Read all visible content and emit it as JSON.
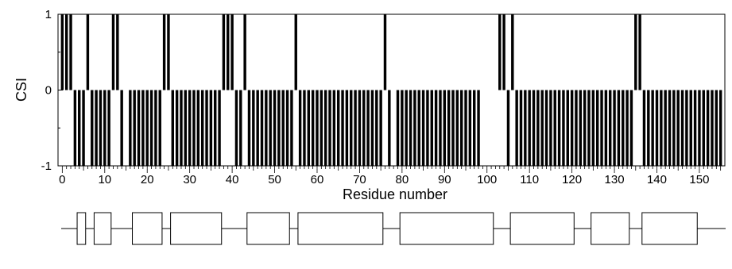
{
  "chart_data": {
    "type": "bar",
    "title": "",
    "ylabel": "CSI",
    "xlabel": "Residue number",
    "xlim": [
      -1,
      156
    ],
    "ylim": [
      -1,
      1
    ],
    "x_ticks": [
      "0",
      "10",
      "20",
      "30",
      "40",
      "50",
      "60",
      "70",
      "80",
      "90",
      "100",
      "110",
      "120",
      "130",
      "140",
      "150"
    ],
    "y_ticks": [
      "-1",
      "0",
      "1"
    ],
    "bar_color": "#000000",
    "csi_values": [
      1,
      1,
      1,
      -1,
      -1,
      -1,
      1,
      -1,
      -1,
      -1,
      -1,
      -1,
      1,
      1,
      -1,
      0,
      -1,
      -1,
      -1,
      -1,
      -1,
      -1,
      -1,
      -1,
      1,
      1,
      -1,
      -1,
      -1,
      -1,
      -1,
      -1,
      -1,
      -1,
      -1,
      -1,
      -1,
      -1,
      1,
      1,
      1,
      -1,
      -1,
      1,
      -1,
      -1,
      -1,
      -1,
      -1,
      -1,
      -1,
      -1,
      -1,
      -1,
      -1,
      1,
      -1,
      -1,
      -1,
      -1,
      -1,
      -1,
      -1,
      -1,
      -1,
      -1,
      -1,
      -1,
      -1,
      -1,
      -1,
      -1,
      -1,
      -1,
      -1,
      -1,
      1,
      -1,
      0,
      -1,
      -1,
      -1,
      -1,
      -1,
      -1,
      -1,
      -1,
      -1,
      -1,
      -1,
      -1,
      -1,
      -1,
      -1,
      -1,
      -1,
      -1,
      -1,
      -1,
      0,
      0,
      0,
      0,
      1,
      1,
      -1,
      1,
      -1,
      -1,
      -1,
      -1,
      -1,
      -1,
      -1,
      -1,
      -1,
      -1,
      -1,
      -1,
      -1,
      -1,
      -1,
      -1,
      -1,
      -1,
      -1,
      -1,
      -1,
      -1,
      -1,
      -1,
      -1,
      -1,
      -1,
      -1,
      1,
      1,
      -1,
      -1,
      -1,
      -1,
      -1,
      -1,
      -1,
      -1,
      -1,
      -1,
      -1,
      -1,
      -1,
      -1,
      -1,
      -1,
      -1,
      -1,
      -1
    ],
    "secondary_structure": [
      {
        "start": 3.5,
        "end": 5.5
      },
      {
        "start": 7.5,
        "end": 11.5
      },
      {
        "start": 16.5,
        "end": 23.5
      },
      {
        "start": 25.5,
        "end": 37.5
      },
      {
        "start": 43.5,
        "end": 53.5
      },
      {
        "start": 55.5,
        "end": 75.5
      },
      {
        "start": 79.5,
        "end": 101.5
      },
      {
        "start": 105.5,
        "end": 120.5
      },
      {
        "start": 124.5,
        "end": 133.5
      },
      {
        "start": 136.5,
        "end": 149.5
      }
    ]
  }
}
